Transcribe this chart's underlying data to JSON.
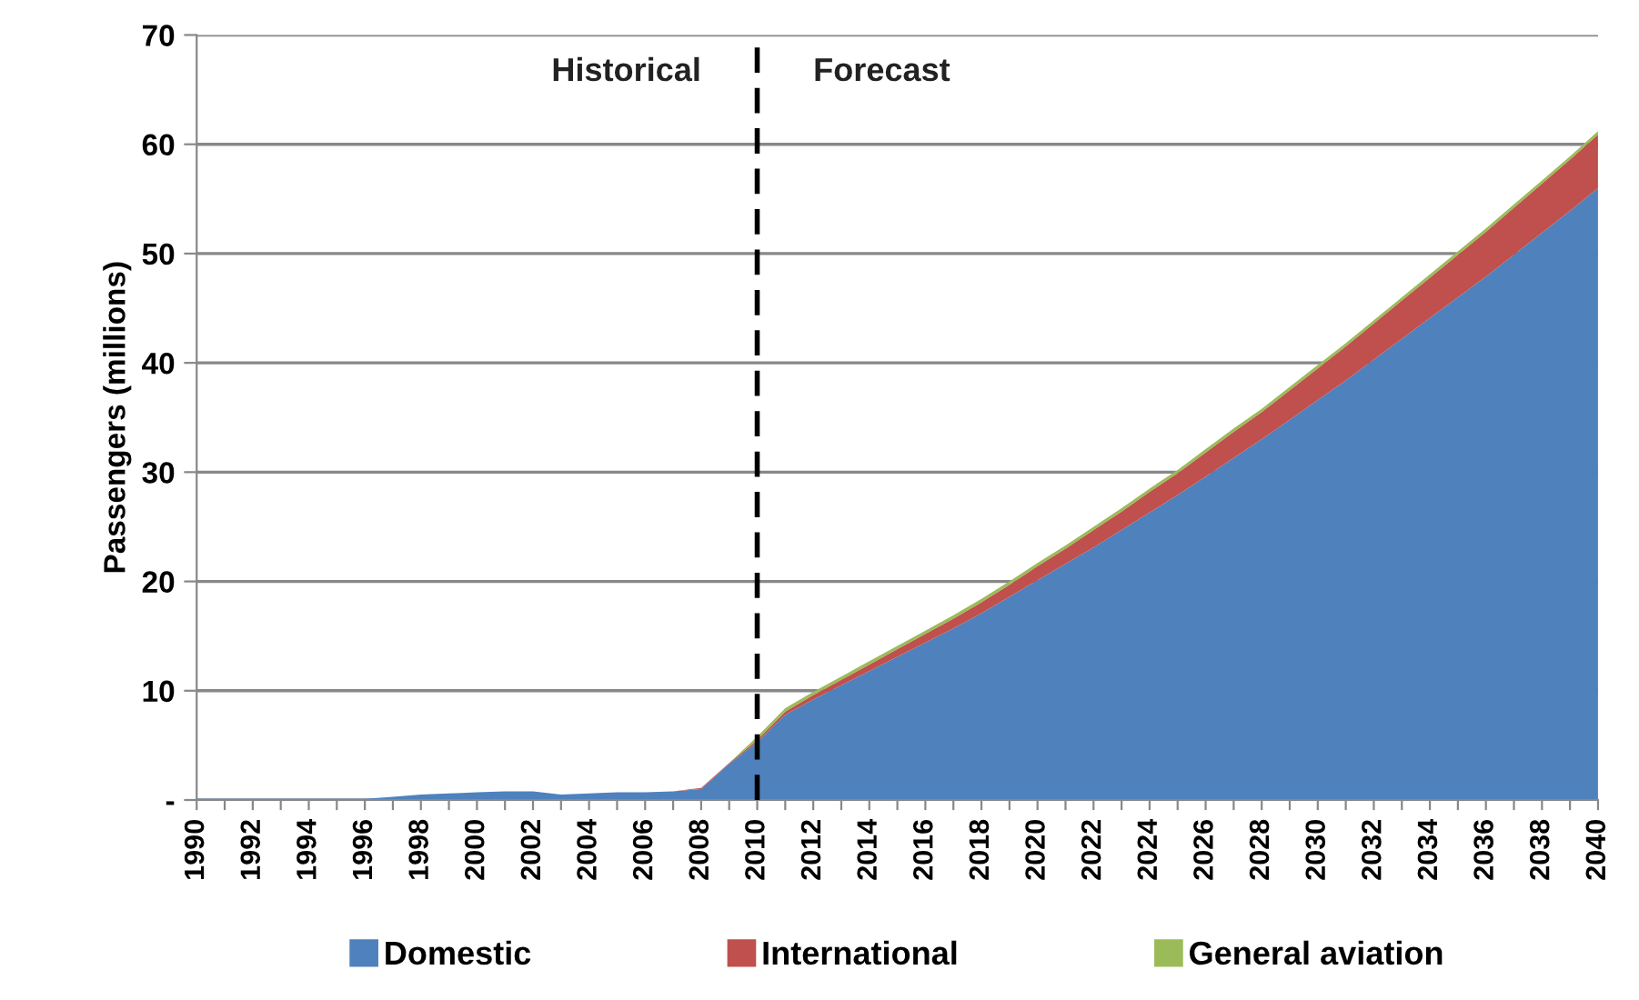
{
  "chart_data": {
    "type": "area",
    "stacked": true,
    "ylabel": "Passengers (millions)",
    "categories": [
      "1990",
      null,
      "1992",
      null,
      "1994",
      null,
      "1996",
      null,
      "1998",
      null,
      "2000",
      null,
      "2002",
      null,
      "2004",
      null,
      "2006",
      null,
      "2008",
      null,
      "2010",
      null,
      "2012",
      null,
      "2014",
      null,
      "2016",
      null,
      "2018",
      null,
      "2020",
      null,
      "2022",
      null,
      "2024",
      null,
      "2026",
      null,
      "2028",
      null,
      "2030",
      null,
      "2032",
      null,
      "2034",
      null,
      "2036",
      null,
      "2038",
      null,
      "2040"
    ],
    "series": [
      {
        "name": "Domestic",
        "color": "#4f81bd",
        "values": [
          0.1,
          0.1,
          0.1,
          0.1,
          0.1,
          0.1,
          0.1,
          0.3,
          0.5,
          0.6,
          0.7,
          0.8,
          0.8,
          0.5,
          0.6,
          0.7,
          0.7,
          0.8,
          1.0,
          3.3,
          5.3,
          7.8,
          9.2,
          10.5,
          11.8,
          13.1,
          14.4,
          15.7,
          17.1,
          18.6,
          20.1,
          21.6,
          23.1,
          24.7,
          26.3,
          27.9,
          29.6,
          31.3,
          33.0,
          34.8,
          36.6,
          38.4,
          40.3,
          42.2,
          44.1,
          46.0,
          47.9,
          49.9,
          51.9,
          53.9,
          56.0
        ]
      },
      {
        "name": "International",
        "color": "#c0504d",
        "values": [
          0,
          0,
          0,
          0,
          0,
          0,
          0,
          0,
          0,
          0,
          0,
          0,
          0,
          0,
          0,
          0,
          0,
          0,
          0.1,
          0.1,
          0.2,
          0.3,
          0.4,
          0.5,
          0.6,
          0.7,
          0.8,
          0.9,
          1.0,
          1.1,
          1.3,
          1.4,
          1.6,
          1.7,
          1.9,
          2.0,
          2.2,
          2.4,
          2.5,
          2.7,
          2.9,
          3.1,
          3.3,
          3.5,
          3.7,
          3.9,
          4.1,
          4.3,
          4.5,
          4.7,
          4.9
        ]
      },
      {
        "name": "General aviation",
        "color": "#9bbb59",
        "values": [
          0,
          0,
          0,
          0,
          0,
          0,
          0,
          0,
          0,
          0,
          0,
          0,
          0,
          0,
          0,
          0,
          0,
          0,
          0,
          0,
          0.3,
          0.3,
          0.3,
          0.3,
          0.3,
          0.3,
          0.3,
          0.3,
          0.3,
          0.3,
          0.3,
          0.3,
          0.3,
          0.3,
          0.3,
          0.3,
          0.3,
          0.3,
          0.3,
          0.3,
          0.3,
          0.3,
          0.3,
          0.3,
          0.3,
          0.3,
          0.3,
          0.3,
          0.3,
          0.3,
          0.3
        ]
      }
    ],
    "ylim": [
      0,
      70
    ],
    "yticks": [
      {
        "value": 0,
        "label": "-"
      },
      10,
      20,
      30,
      40,
      50,
      60,
      70
    ],
    "grid": "y",
    "legend": "bottom",
    "ref_lines": [
      {
        "axis": "x",
        "value": "2010",
        "color": "#000000",
        "line_style": "dashed"
      }
    ],
    "annotations": [
      "Historical",
      "Forecast"
    ]
  }
}
